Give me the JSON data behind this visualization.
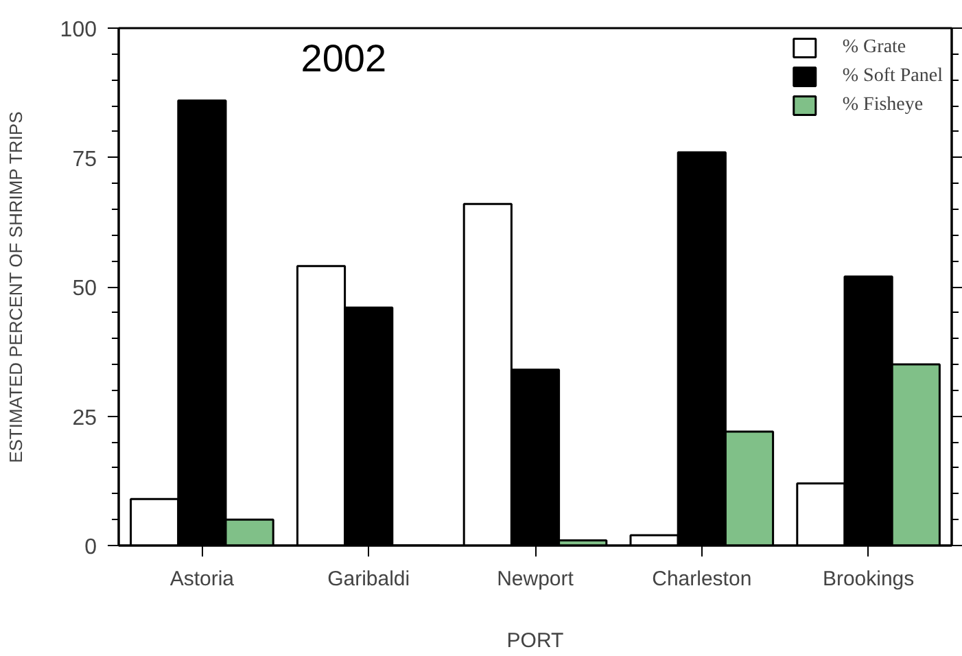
{
  "chart_data": {
    "type": "bar",
    "title": "2002",
    "xlabel": "PORT",
    "ylabel": "ESTIMATED PERCENT OF SHRIMP TRIPS",
    "categories": [
      "Astoria",
      "Garibaldi",
      "Newport",
      "Charleston",
      "Brookings"
    ],
    "series": [
      {
        "name": "% Grate",
        "color": "#ffffff",
        "values": [
          9,
          54,
          66,
          2,
          12
        ]
      },
      {
        "name": "% Soft Panel",
        "color": "#000000",
        "values": [
          86,
          46,
          34,
          76,
          52
        ]
      },
      {
        "name": "% Fisheye",
        "color": "#80c088",
        "values": [
          5,
          0,
          1,
          22,
          35
        ]
      }
    ],
    "ylim": [
      0,
      100
    ],
    "yticks": [
      0,
      {
        "value": 5,
        "label": null
      },
      {
        "value": 10,
        "label": null
      },
      {
        "value": 15,
        "label": null
      },
      {
        "value": 20,
        "label": null
      },
      25,
      {
        "value": 30,
        "label": null
      },
      {
        "value": 35,
        "label": null
      },
      {
        "value": 40,
        "label": null
      },
      {
        "value": 45,
        "label": null
      },
      50,
      {
        "value": 55,
        "label": null
      },
      {
        "value": 60,
        "label": null
      },
      {
        "value": 65,
        "label": null
      },
      {
        "value": 70,
        "label": null
      },
      75,
      {
        "value": 80,
        "label": null
      },
      {
        "value": 85,
        "label": null
      },
      {
        "value": 90,
        "label": null
      },
      {
        "value": 95,
        "label": null
      },
      100
    ],
    "legend": "top right"
  }
}
